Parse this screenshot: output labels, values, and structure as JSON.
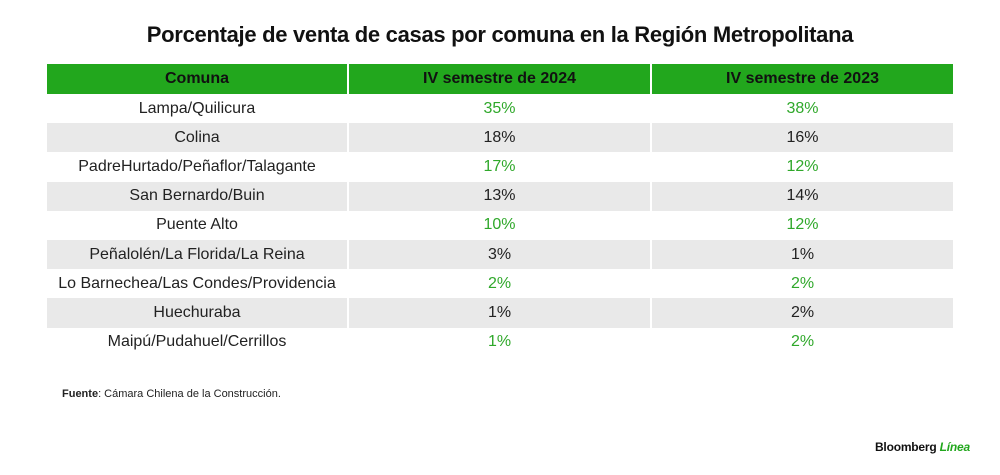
{
  "title": "Porcentaje  de venta de casas por comuna en la Región Metropolitana",
  "colors": {
    "header_green": "#22a71d",
    "value_green": "#2fa82a",
    "row_shade": "#e9e9e9"
  },
  "chart_data": {
    "type": "table",
    "title": "Porcentaje  de venta de casas por comuna en la Región Metropolitana",
    "columns": [
      "Comuna",
      "IV semestre de 2024",
      "IV semestre de 2023"
    ],
    "rows": [
      {
        "comuna": "Lampa/Quilicura",
        "v2024": "35%",
        "v2023": "38%"
      },
      {
        "comuna": "Colina",
        "v2024": "18%",
        "v2023": "16%"
      },
      {
        "comuna": "PadreHurtado/Peñaflor/Talagante",
        "v2024": "17%",
        "v2023": "12%"
      },
      {
        "comuna": "San Bernardo/Buin",
        "v2024": "13%",
        "v2023": "14%"
      },
      {
        "comuna": "Puente Alto",
        "v2024": "10%",
        "v2023": "12%"
      },
      {
        "comuna": "Peñalolén/La Florida/La Reina",
        "v2024": "3%",
        "v2023": "1%"
      },
      {
        "comuna": "Lo Barnechea/Las Condes/Providencia",
        "v2024": "2%",
        "v2023": "2%"
      },
      {
        "comuna": "Huechuraba",
        "v2024": "1%",
        "v2023": "2%"
      },
      {
        "comuna": "Maipú/Pudahuel/Cerrillos",
        "v2024": "1%",
        "v2023": "2%"
      }
    ]
  },
  "source": {
    "label": "Fuente",
    "text": ": Cámara Chilena de la Construcción."
  },
  "logo": {
    "brand": "Bloomberg",
    "accent": "Línea"
  }
}
